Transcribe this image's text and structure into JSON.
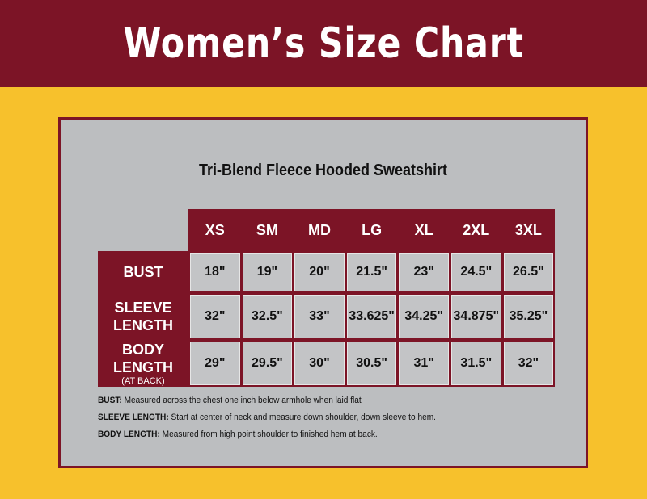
{
  "header": {
    "title": "Women’s Size Chart"
  },
  "table": {
    "title": "Tri-Blend Fleece Hooded Sweatshirt",
    "columns": [
      "XS",
      "SM",
      "MD",
      "LG",
      "XL",
      "2XL",
      "3XL"
    ],
    "rows": [
      {
        "label": "BUST",
        "cells": [
          "18\"",
          "19\"",
          "20\"",
          "21.5\"",
          "23\"",
          "24.5\"",
          "26.5\""
        ]
      },
      {
        "label": "SLEEVE LENGTH",
        "cells": [
          "32\"",
          "32.5\"",
          "33\"",
          "33.625\"",
          "34.25\"",
          "34.875\"",
          "35.25\""
        ]
      },
      {
        "label": "BODY LENGTH",
        "sublabel": "(AT BACK)",
        "cells": [
          "29\"",
          "29.5\"",
          "30\"",
          "30.5\"",
          "31\"",
          "31.5\"",
          "32\""
        ]
      }
    ]
  },
  "notes": [
    {
      "term": "BUST:",
      "text": "Measured across the chest one inch below armhole when laid flat"
    },
    {
      "term": "SLEEVE LENGTH:",
      "text": "Start at center of neck and measure down shoulder, down sleeve to hem."
    },
    {
      "term": "BODY LENGTH:",
      "text": "Measured from high point shoulder to finished hem at back."
    }
  ]
}
